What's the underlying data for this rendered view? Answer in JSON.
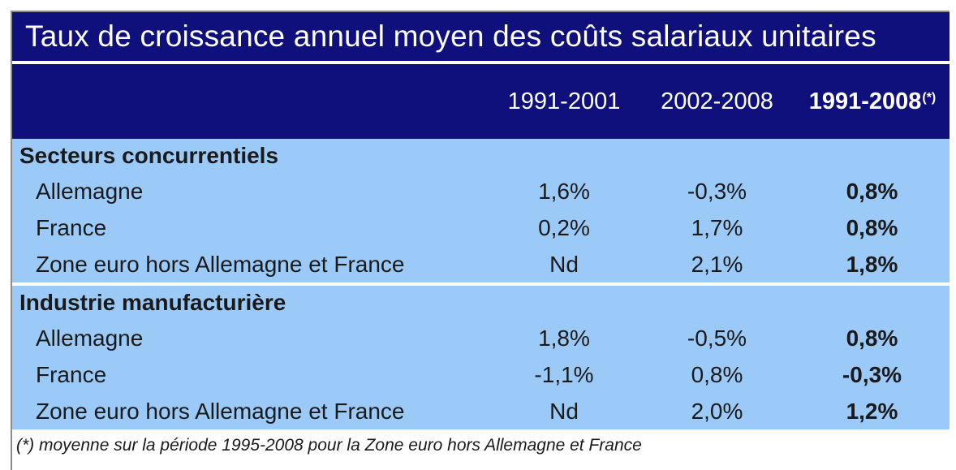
{
  "chart_data": {
    "type": "table",
    "title": "Taux de croissance annuel moyen des coûts salariaux unitaires",
    "columns": [
      "1991-2001",
      "2002-2008",
      "1991-2008"
    ],
    "column_note_marker": "(*)",
    "sections": [
      {
        "label": "Secteurs concurrentiels",
        "rows": [
          {
            "label": "Allemagne",
            "values": [
              "1,6%",
              "-0,3%",
              "0,8%"
            ]
          },
          {
            "label": "France",
            "values": [
              "0,2%",
              "1,7%",
              "0,8%"
            ]
          },
          {
            "label": "Zone euro hors Allemagne et France",
            "values": [
              "Nd",
              "2,1%",
              "1,8%"
            ]
          }
        ]
      },
      {
        "label": "Industrie manufacturière",
        "rows": [
          {
            "label": "Allemagne",
            "values": [
              "1,8%",
              "-0,5%",
              "0,8%"
            ]
          },
          {
            "label": "France",
            "values": [
              "-1,1%",
              "0,8%",
              "-0,3%"
            ]
          },
          {
            "label": "Zone euro hors Allemagne et France",
            "values": [
              "Nd",
              "2,0%",
              "1,2%"
            ]
          }
        ]
      }
    ],
    "footnote": "(*) moyenne sur la période 1995-2008 pour la Zone euro hors Allemagne et France",
    "layout": {
      "legend": "none",
      "grid": "off",
      "header_background": "#10107c",
      "body_background": "#9bcaf9",
      "frame_border": "#8c8c8c",
      "last_column_bold": true
    }
  }
}
